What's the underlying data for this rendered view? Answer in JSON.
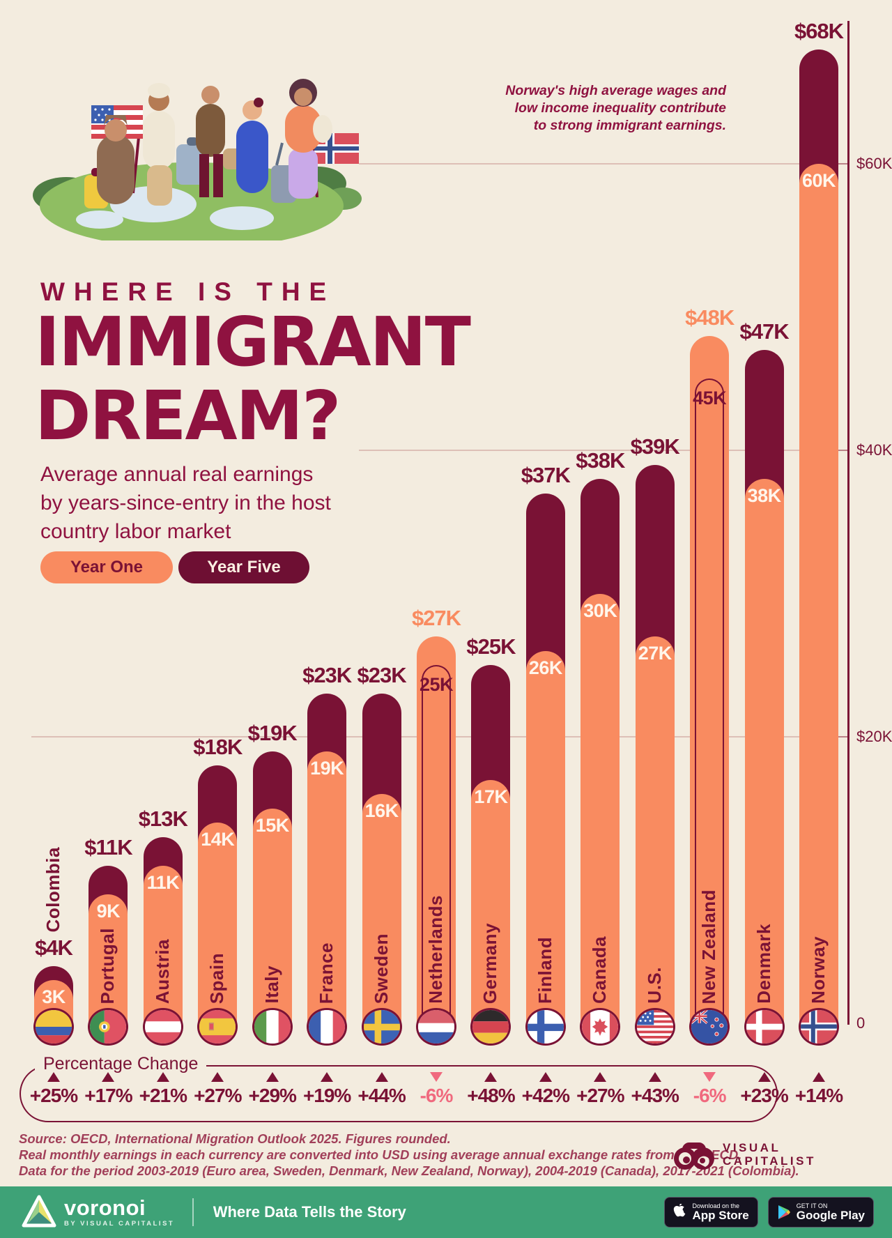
{
  "header": {
    "kicker": "WHERE IS THE",
    "title_line1": "IMMIGRANT",
    "title_line2": "DREAM?",
    "subtitle_lines": [
      "Average annual real earnings",
      "by years-since-entry in the host",
      "country labor market"
    ]
  },
  "legend": {
    "year_one": "Year One",
    "year_five": "Year Five"
  },
  "annotation": {
    "lines": [
      "Norway's high average wages and",
      "low income inequality contribute",
      "to strong immigrant earnings."
    ]
  },
  "colors": {
    "maroon": "#7A1235",
    "orange": "#F98B60",
    "negative_pink": "#F0697E",
    "background": "#F3ECDF",
    "footer_green": "#3EA277",
    "title_maroon": "#8F1240"
  },
  "chart_data": {
    "type": "bar",
    "title": "Average annual real earnings by years-since-entry in the host country labor market",
    "unit": "USD (thousands)",
    "series_names": [
      "Year One",
      "Year Five"
    ],
    "ylim": [
      0,
      70
    ],
    "yticks": [
      {
        "label": "$60K",
        "value": 60
      },
      {
        "label": "$40K",
        "value": 40
      },
      {
        "label": "$20K",
        "value": 20
      },
      {
        "label": "0",
        "value": 0
      }
    ],
    "legend_position": "top-left",
    "grid": true,
    "countries": [
      {
        "name": "Colombia",
        "flag": "colombia",
        "year_one": 3,
        "year_five": 4,
        "top_label": "$4K",
        "inner_label": "3K",
        "pct_label": "+25%",
        "direction": "up",
        "negative": false,
        "name_outside": true
      },
      {
        "name": "Portugal",
        "flag": "portugal",
        "year_one": 9,
        "year_five": 11,
        "top_label": "$11K",
        "inner_label": "9K",
        "pct_label": "+17%",
        "direction": "up",
        "negative": false,
        "name_outside": false
      },
      {
        "name": "Austria",
        "flag": "austria",
        "year_one": 11,
        "year_five": 13,
        "top_label": "$13K",
        "inner_label": "11K",
        "pct_label": "+21%",
        "direction": "up",
        "negative": false,
        "name_outside": false
      },
      {
        "name": "Spain",
        "flag": "spain",
        "year_one": 14,
        "year_five": 18,
        "top_label": "$18K",
        "inner_label": "14K",
        "pct_label": "+27%",
        "direction": "up",
        "negative": false,
        "name_outside": false
      },
      {
        "name": "Italy",
        "flag": "italy",
        "year_one": 15,
        "year_five": 19,
        "top_label": "$19K",
        "inner_label": "15K",
        "pct_label": "+29%",
        "direction": "up",
        "negative": false,
        "name_outside": false
      },
      {
        "name": "France",
        "flag": "france",
        "year_one": 19,
        "year_five": 23,
        "top_label": "$23K",
        "inner_label": "19K",
        "pct_label": "+19%",
        "direction": "up",
        "negative": false,
        "name_outside": false
      },
      {
        "name": "Sweden",
        "flag": "sweden",
        "year_one": 16,
        "year_five": 23,
        "top_label": "$23K",
        "inner_label": "16K",
        "pct_label": "+44%",
        "direction": "up",
        "negative": false,
        "name_outside": false
      },
      {
        "name": "Netherlands",
        "flag": "netherlands",
        "year_one": 27,
        "year_five": 25,
        "top_label": "$27K",
        "inner_label": "25K",
        "pct_label": "-6%",
        "direction": "down",
        "negative": true,
        "name_outside": false
      },
      {
        "name": "Germany",
        "flag": "germany",
        "year_one": 17,
        "year_five": 25,
        "top_label": "$25K",
        "inner_label": "17K",
        "pct_label": "+48%",
        "direction": "up",
        "negative": false,
        "name_outside": false
      },
      {
        "name": "Finland",
        "flag": "finland",
        "year_one": 26,
        "year_five": 37,
        "top_label": "$37K",
        "inner_label": "26K",
        "pct_label": "+42%",
        "direction": "up",
        "negative": false,
        "name_outside": false
      },
      {
        "name": "Canada",
        "flag": "canada",
        "year_one": 30,
        "year_five": 38,
        "top_label": "$38K",
        "inner_label": "30K",
        "pct_label": "+27%",
        "direction": "up",
        "negative": false,
        "name_outside": false
      },
      {
        "name": "U.S.",
        "flag": "us",
        "year_one": 27,
        "year_five": 39,
        "top_label": "$39K",
        "inner_label": "27K",
        "pct_label": "+43%",
        "direction": "up",
        "negative": false,
        "name_outside": false
      },
      {
        "name": "New Zealand",
        "flag": "newzealand",
        "year_one": 48,
        "year_five": 45,
        "top_label": "$48K",
        "inner_label": "45K",
        "pct_label": "-6%",
        "direction": "down",
        "negative": true,
        "name_outside": false
      },
      {
        "name": "Denmark",
        "flag": "denmark",
        "year_one": 38,
        "year_five": 47,
        "top_label": "$47K",
        "inner_label": "38K",
        "pct_label": "+23%",
        "direction": "up",
        "negative": false,
        "name_outside": false
      },
      {
        "name": "Norway",
        "flag": "norway",
        "year_one": 60,
        "year_five": 68,
        "top_label": "$68K",
        "inner_label": "60K",
        "pct_label": "+14%",
        "direction": "up",
        "negative": false,
        "name_outside": false
      }
    ]
  },
  "percentage_section": {
    "label": "Percentage Change"
  },
  "source": {
    "lines": [
      "Source: OECD, International Migration Outlook 2025. Figures rounded.",
      "Real monthly earnings in each currency are converted into USD using average annual exchange rates from the OECD.",
      "Data for the period 2003-2019 (Euro area, Sweden, Denmark, New Zealand, Norway), 2004-2019 (Canada), 2017-2021 (Colombia)."
    ]
  },
  "vc_logo": {
    "line1": "VISUAL",
    "line2": "CAPITALIST"
  },
  "footer": {
    "brand": "voronoi",
    "brand_sub": "BY VISUAL CAPITALIST",
    "tagline": "Where Data Tells the Story",
    "appstore_top": "Download on the",
    "appstore_bottom": "App Store",
    "gplay_top": "GET IT ON",
    "gplay_bottom": "Google Play"
  }
}
